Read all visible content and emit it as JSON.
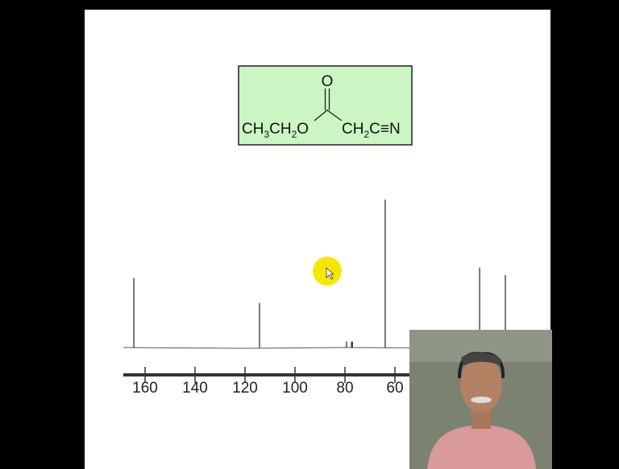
{
  "molecule": {
    "carbonyl_o": "O",
    "left": [
      "CH",
      "3",
      "CH",
      "2",
      "O"
    ],
    "right": [
      "CH",
      "2",
      "C≡N"
    ]
  },
  "chart_data": {
    "type": "stem",
    "color": "#333333",
    "x": [
      164.5,
      114.2,
      79.4,
      77.4,
      77.0,
      63.9,
      26.1,
      15.8
    ],
    "values": [
      47,
      30,
      4,
      4,
      4,
      100,
      54,
      49
    ],
    "xlim": [
      168,
      12
    ],
    "ylim": [
      0,
      100
    ],
    "xticks": [
      160,
      140,
      120,
      100,
      80,
      60
    ]
  }
}
